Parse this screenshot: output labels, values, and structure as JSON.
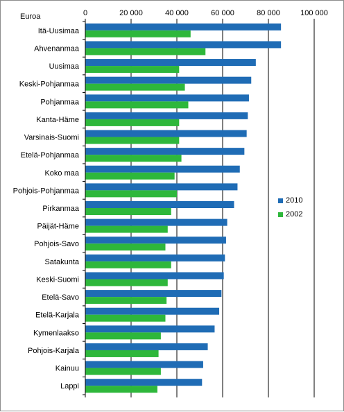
{
  "chart_data": {
    "type": "bar",
    "orientation": "horizontal",
    "unit_label": "Euroa",
    "categories": [
      "Itä-Uusimaa",
      "Ahvenanmaa",
      "Uusimaa",
      "Keski-Pohjanmaa",
      "Pohjanmaa",
      "Kanta-Häme",
      "Varsinais-Suomi",
      "Etelä-Pohjanmaa",
      "Koko maa",
      "Pohjois-Pohjanmaa",
      "Pirkanmaa",
      "Päijät-Häme",
      "Pohjois-Savo",
      "Satakunta",
      "Keski-Suomi",
      "Etelä-Savo",
      "Etelä-Karjala",
      "Kymenlaakso",
      "Pohjois-Karjala",
      "Kainuu",
      "Lappi"
    ],
    "series": [
      {
        "name": "2010",
        "color": "#1f6cb5",
        "values": [
          85500,
          85500,
          74500,
          72500,
          71500,
          71000,
          70500,
          69500,
          67500,
          66500,
          65000,
          62000,
          61500,
          61000,
          60500,
          59500,
          58500,
          56500,
          53500,
          51500,
          51000
        ]
      },
      {
        "name": "2002",
        "color": "#2eb73b",
        "values": [
          46000,
          52500,
          41000,
          43500,
          45000,
          41000,
          41000,
          42000,
          39000,
          40000,
          37500,
          36000,
          35000,
          37500,
          36000,
          35500,
          35000,
          33000,
          32000,
          33000,
          31500
        ]
      }
    ],
    "xlim": [
      0,
      100000
    ],
    "x_ticks": [
      0,
      20000,
      40000,
      60000,
      80000,
      100000
    ],
    "x_tick_labels": [
      "0",
      "20 000",
      "40 000",
      "60 000",
      "80 000",
      "100 000"
    ],
    "axis_position": "top",
    "grid": true,
    "legend_position": "right"
  }
}
